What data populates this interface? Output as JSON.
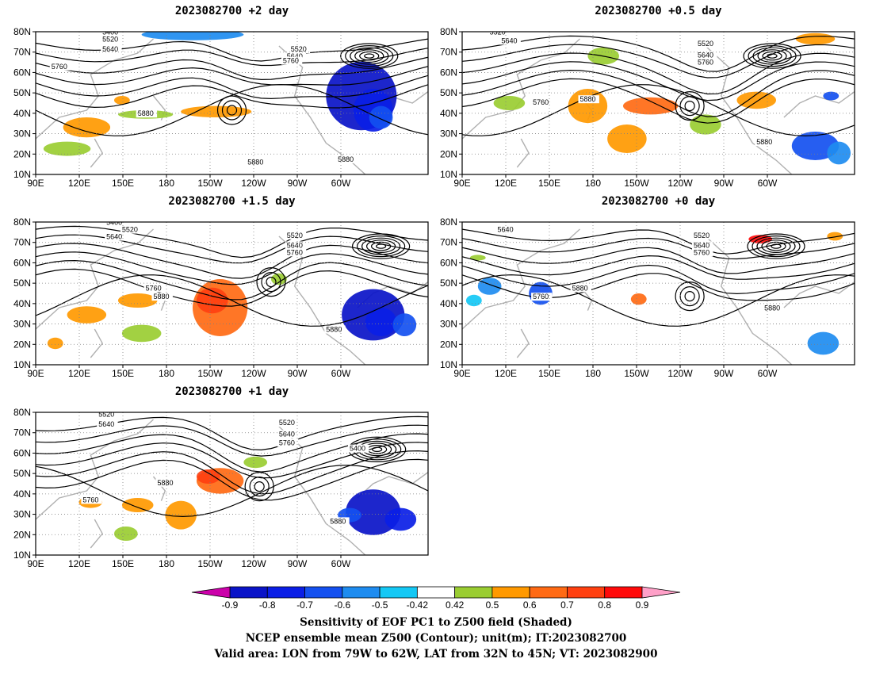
{
  "figure": {
    "footer_lines": [
      "Sensitivity of EOF PC1 to Z500 field (Shaded)",
      "NCEP ensemble mean Z500 (Contour); unit(m); IT:2023082700",
      "Valid area: LON from 79W to 62W, LAT from 32N to 45N; VT: 2023082900"
    ]
  },
  "colors": {
    "land": "#b0b0b0",
    "contour": "#000000",
    "neg": [
      "#cc00aa",
      "#0a14c8",
      "#0a1ee6",
      "#1450f0",
      "#1e8cf0",
      "#14c8f5"
    ],
    "pos": [
      "#9acd32",
      "#ff9900",
      "#ff6a14",
      "#ff4010",
      "#ff0a0a",
      "#ffa0c8"
    ]
  },
  "chart_data": [
    {
      "type": "contour-map",
      "title": "2023082700 +2 day",
      "x_ticks": [
        "90E",
        "120E",
        "150E",
        "180",
        "150W",
        "120W",
        "90W",
        "60W"
      ],
      "y_ticks": [
        "10N",
        "20N",
        "30N",
        "40N",
        "50N",
        "60N",
        "70N",
        "80N"
      ],
      "contour_labels": [
        "5400",
        "5520",
        "5640",
        "5760",
        "5640",
        "5520",
        "5760",
        "5880",
        "5880",
        "5880"
      ],
      "shading_variable": "Sensitivity of EOF PC1 to Z500 field",
      "contour_variable": "NCEP ensemble mean Z500"
    },
    {
      "type": "contour-map",
      "title": "2023082700 +0.5 day",
      "x_ticks": [
        "90E",
        "120E",
        "150E",
        "180",
        "150W",
        "120W",
        "90W",
        "60W"
      ],
      "y_ticks": [
        "10N",
        "20N",
        "30N",
        "40N",
        "50N",
        "60N",
        "70N",
        "80N"
      ],
      "contour_labels": [
        "5520",
        "5640",
        "5520",
        "5640",
        "5760",
        "5760",
        "5880",
        "5880"
      ],
      "shading_variable": "Sensitivity of EOF PC1 to Z500 field",
      "contour_variable": "NCEP ensemble mean Z500"
    },
    {
      "type": "contour-map",
      "title": "2023082700 +1.5 day",
      "x_ticks": [
        "90E",
        "120E",
        "150E",
        "180",
        "150W",
        "120W",
        "90W",
        "60W"
      ],
      "y_ticks": [
        "10N",
        "20N",
        "30N",
        "40N",
        "50N",
        "60N",
        "70N",
        "80N"
      ],
      "contour_labels": [
        "5400",
        "5520",
        "5640",
        "5520",
        "5640",
        "5760",
        "5760",
        "5880",
        "5880"
      ],
      "shading_variable": "Sensitivity of EOF PC1 to Z500 field",
      "contour_variable": "NCEP ensemble mean Z500"
    },
    {
      "type": "contour-map",
      "title": "2023082700 +0 day",
      "x_ticks": [
        "90E",
        "120E",
        "150E",
        "180",
        "150W",
        "120W",
        "90W",
        "60W"
      ],
      "y_ticks": [
        "10N",
        "20N",
        "30N",
        "40N",
        "50N",
        "60N",
        "70N",
        "80N"
      ],
      "contour_labels": [
        "5640",
        "5520",
        "5640",
        "5760",
        "5760",
        "5880",
        "5880"
      ],
      "shading_variable": "Sensitivity of EOF PC1 to Z500 field",
      "contour_variable": "NCEP ensemble mean Z500"
    },
    {
      "type": "contour-map",
      "title": "2023082700 +1 day",
      "x_ticks": [
        "90E",
        "120E",
        "150E",
        "180",
        "150W",
        "120W",
        "90W",
        "60W"
      ],
      "y_ticks": [
        "10N",
        "20N",
        "30N",
        "40N",
        "50N",
        "60N",
        "70N",
        "80N"
      ],
      "contour_labels": [
        "5520",
        "5640",
        "5520",
        "5640",
        "5760",
        "5400",
        "5880",
        "5760",
        "5880"
      ],
      "shading_variable": "Sensitivity of EOF PC1 to Z500 field",
      "contour_variable": "NCEP ensemble mean Z500"
    }
  ],
  "colorbar": {
    "levels": [
      "-0.9",
      "-0.8",
      "-0.7",
      "-0.6",
      "-0.5",
      "-0.42",
      "0.42",
      "0.5",
      "0.6",
      "0.7",
      "0.8",
      "0.9"
    ],
    "extend": "both"
  }
}
